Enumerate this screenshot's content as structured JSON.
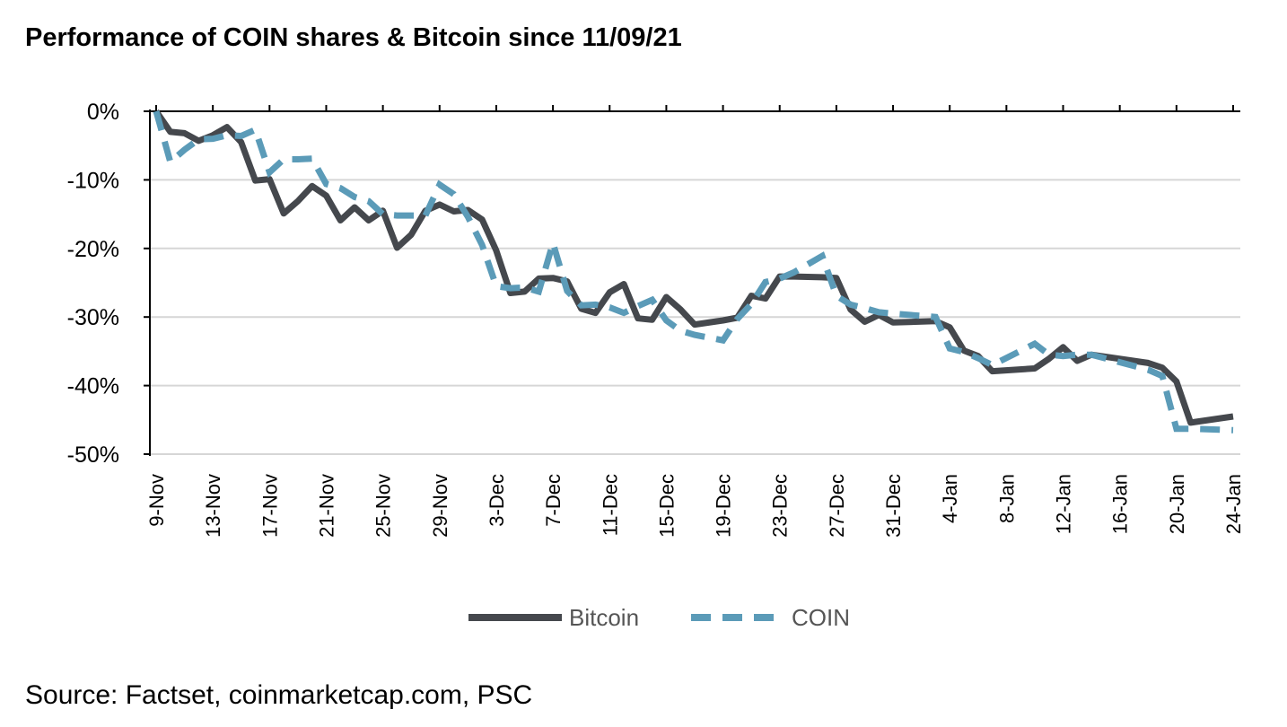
{
  "chart_data": {
    "type": "line",
    "title": "Performance of COIN shares & Bitcoin since 11/09/21",
    "source": "Source: Factset, coinmarketcap.com, PSC",
    "y_unit": "%",
    "ylim": [
      -50,
      0
    ],
    "y_ticks": [
      0,
      -10,
      -20,
      -30,
      -40,
      -50
    ],
    "y_tick_labels": [
      "0%",
      "-10%",
      "-20%",
      "-30%",
      "-40%",
      "-50%"
    ],
    "x_tick_labels": [
      "9-Nov",
      "13-Nov",
      "17-Nov",
      "21-Nov",
      "25-Nov",
      "29-Nov",
      "3-Dec",
      "7-Dec",
      "11-Dec",
      "15-Dec",
      "19-Dec",
      "23-Dec",
      "27-Dec",
      "31-Dec",
      "4-Jan",
      "8-Jan",
      "12-Jan",
      "16-Jan",
      "20-Jan",
      "24-Jan"
    ],
    "grid": "horizontal",
    "legend_position": "bottom",
    "series": [
      {
        "name": "Bitcoin",
        "color": "#45484d",
        "style": "solid",
        "points": [
          [
            "9-Nov",
            0
          ],
          [
            "10-Nov",
            -3
          ],
          [
            "11-Nov",
            -3.2
          ],
          [
            "12-Nov",
            -4.3
          ],
          [
            "13-Nov",
            -3.5
          ],
          [
            "14-Nov",
            -2.3
          ],
          [
            "15-Nov",
            -4.5
          ],
          [
            "16-Nov",
            -10.1
          ],
          [
            "17-Nov",
            -9.9
          ],
          [
            "18-Nov",
            -14.9
          ],
          [
            "19-Nov",
            -13.1
          ],
          [
            "20-Nov",
            -10.9
          ],
          [
            "21-Nov",
            -12.3
          ],
          [
            "22-Nov",
            -15.9
          ],
          [
            "23-Nov",
            -14
          ],
          [
            "24-Nov",
            -15.9
          ],
          [
            "25-Nov",
            -14.5
          ],
          [
            "26-Nov",
            -19.9
          ],
          [
            "27-Nov",
            -18
          ],
          [
            "28-Nov",
            -14.5
          ],
          [
            "29-Nov",
            -13.6
          ],
          [
            "30-Nov",
            -14.6
          ],
          [
            "1-Dec",
            -14.4
          ],
          [
            "2-Dec",
            -15.8
          ],
          [
            "3-Dec",
            -20.3
          ],
          [
            "4-Dec",
            -26.5
          ],
          [
            "5-Dec",
            -26.3
          ],
          [
            "6-Dec",
            -24.4
          ],
          [
            "7-Dec",
            -24.3
          ],
          [
            "8-Dec",
            -24.8
          ],
          [
            "9-Dec",
            -28.8
          ],
          [
            "10-Dec",
            -29.4
          ],
          [
            "11-Dec",
            -26.4
          ],
          [
            "12-Dec",
            -25.2
          ],
          [
            "13-Dec",
            -30.2
          ],
          [
            "14-Dec",
            -30.4
          ],
          [
            "15-Dec",
            -27.1
          ],
          [
            "16-Dec",
            -28.9
          ],
          [
            "17-Dec",
            -31.1
          ],
          [
            "19-Dec",
            -30.5
          ],
          [
            "20-Dec",
            -30.1
          ],
          [
            "21-Dec",
            -26.9
          ],
          [
            "22-Dec",
            -27.3
          ],
          [
            "23-Dec",
            -24.1
          ],
          [
            "24-Dec",
            -24.1
          ],
          [
            "26-Dec",
            -24.2
          ],
          [
            "27-Dec",
            -24.3
          ],
          [
            "28-Dec",
            -28.9
          ],
          [
            "29-Dec",
            -30.7
          ],
          [
            "30-Dec",
            -29.7
          ],
          [
            "31-Dec",
            -30.8
          ],
          [
            "3-Jan",
            -30.6
          ],
          [
            "4-Jan",
            -31.5
          ],
          [
            "5-Jan",
            -34.9
          ],
          [
            "6-Jan",
            -35.7
          ],
          [
            "7-Jan",
            -37.9
          ],
          [
            "10-Jan",
            -37.5
          ],
          [
            "11-Jan",
            -36.1
          ],
          [
            "12-Jan",
            -34.4
          ],
          [
            "13-Jan",
            -36.4
          ],
          [
            "14-Jan",
            -35.5
          ],
          [
            "18-Jan",
            -36.7
          ],
          [
            "19-Jan",
            -37.4
          ],
          [
            "20-Jan",
            -39.4
          ],
          [
            "21-Jan",
            -45.4
          ],
          [
            "24-Jan",
            -44.5
          ]
        ]
      },
      {
        "name": "COIN",
        "color": "#5b9bb8",
        "style": "dashed",
        "points": [
          [
            "9-Nov",
            0
          ],
          [
            "10-Nov",
            -7.4
          ],
          [
            "11-Nov",
            -5.6
          ],
          [
            "12-Nov",
            -4.1
          ],
          [
            "13-Nov",
            -4
          ],
          [
            "14-Nov",
            -3.5
          ],
          [
            "15-Nov",
            -3.6
          ],
          [
            "16-Nov",
            -2.7
          ],
          [
            "17-Nov",
            -8.9
          ],
          [
            "18-Nov",
            -7
          ],
          [
            "19-Nov",
            -7
          ],
          [
            "20-Nov",
            -6.9
          ],
          [
            "21-Nov",
            -10.6
          ],
          [
            "22-Nov",
            -11.2
          ],
          [
            "23-Nov",
            -12.5
          ],
          [
            "24-Nov",
            -13.1
          ],
          [
            "25-Nov",
            -15
          ],
          [
            "26-Nov",
            -15.2
          ],
          [
            "27-Nov",
            -15.2
          ],
          [
            "28-Nov",
            -15.2
          ],
          [
            "29-Nov",
            -10.7
          ],
          [
            "30-Nov",
            -12.1
          ],
          [
            "1-Dec",
            -15.4
          ],
          [
            "2-Dec",
            -19.5
          ],
          [
            "3-Dec",
            -25.5
          ],
          [
            "4-Dec",
            -25.8
          ],
          [
            "5-Dec",
            -25.7
          ],
          [
            "6-Dec",
            -26.3
          ],
          [
            "7-Dec",
            -19.2
          ],
          [
            "8-Dec",
            -26.2
          ],
          [
            "9-Dec",
            -28.3
          ],
          [
            "10-Dec",
            -28.2
          ],
          [
            "11-Dec",
            -28.6
          ],
          [
            "12-Dec",
            -29.4
          ],
          [
            "13-Dec",
            -28.4
          ],
          [
            "14-Dec",
            -27.5
          ],
          [
            "15-Dec",
            -30.5
          ],
          [
            "16-Dec",
            -32
          ],
          [
            "17-Dec",
            -32.6
          ],
          [
            "19-Dec",
            -33.4
          ],
          [
            "20-Dec",
            -30.3
          ],
          [
            "21-Dec",
            -28.1
          ],
          [
            "22-Dec",
            -24.9
          ],
          [
            "23-Dec",
            -24.4
          ],
          [
            "24-Dec",
            -23.5
          ],
          [
            "26-Dec",
            -21.1
          ],
          [
            "27-Dec",
            -26.9
          ],
          [
            "28-Dec",
            -28.2
          ],
          [
            "29-Dec",
            -28.7
          ],
          [
            "30-Dec",
            -29.3
          ],
          [
            "31-Dec",
            -29.5
          ],
          [
            "3-Jan",
            -30
          ],
          [
            "4-Jan",
            -34.6
          ],
          [
            "5-Jan",
            -35.1
          ],
          [
            "6-Jan",
            -36
          ],
          [
            "7-Jan",
            -37
          ],
          [
            "10-Jan",
            -33.9
          ],
          [
            "11-Jan",
            -35.5
          ],
          [
            "12-Jan",
            -35.7
          ],
          [
            "13-Jan",
            -35.5
          ],
          [
            "14-Jan",
            -35.5
          ],
          [
            "18-Jan",
            -37.7
          ],
          [
            "19-Jan",
            -38.6
          ],
          [
            "20-Jan",
            -46.3
          ],
          [
            "21-Jan",
            -46.3
          ],
          [
            "24-Jan",
            -46.5
          ]
        ]
      }
    ]
  }
}
